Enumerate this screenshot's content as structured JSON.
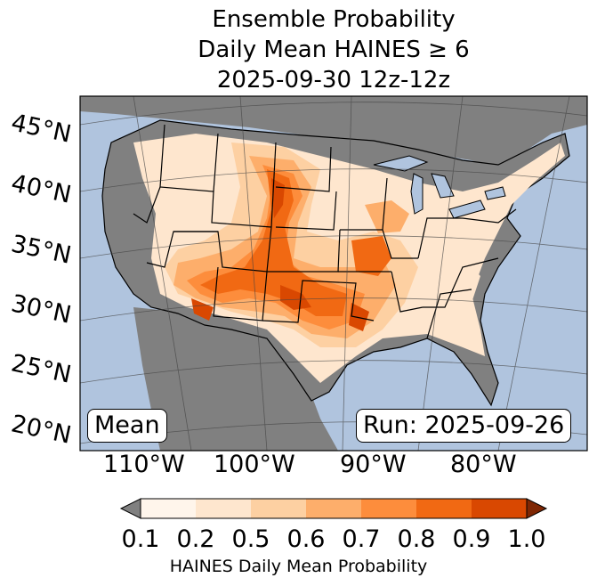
{
  "title": {
    "line1": "Ensemble Probability",
    "line2": "Daily Mean HAINES ≥ 6",
    "line3": "2025-09-30 12z-12z"
  },
  "map": {
    "projection": "lambert-conformal",
    "lat_labels": [
      "45°N",
      "40°N",
      "35°N",
      "30°N",
      "25°N",
      "20°N"
    ],
    "lon_labels": [
      "110°W",
      "100°W",
      "90°W",
      "80°W"
    ],
    "ocean_color": "#b0c4de",
    "land_missing_color": "#808080",
    "stat_label": "Mean",
    "run_label": "Run: 2025-09-26"
  },
  "colorbar": {
    "ticks": [
      "0.1",
      "0.2",
      "0.5",
      "0.6",
      "0.7",
      "0.8",
      "0.9",
      "1.0"
    ],
    "colors": [
      "#fff5eb",
      "#fee6ce",
      "#fdd0a2",
      "#fdae6b",
      "#fd8d3c",
      "#f16913",
      "#d94801",
      "#a63603"
    ],
    "under_color": "#808080",
    "over_color": "#7f2704",
    "label": "HAINES Daily Mean Probability"
  }
}
